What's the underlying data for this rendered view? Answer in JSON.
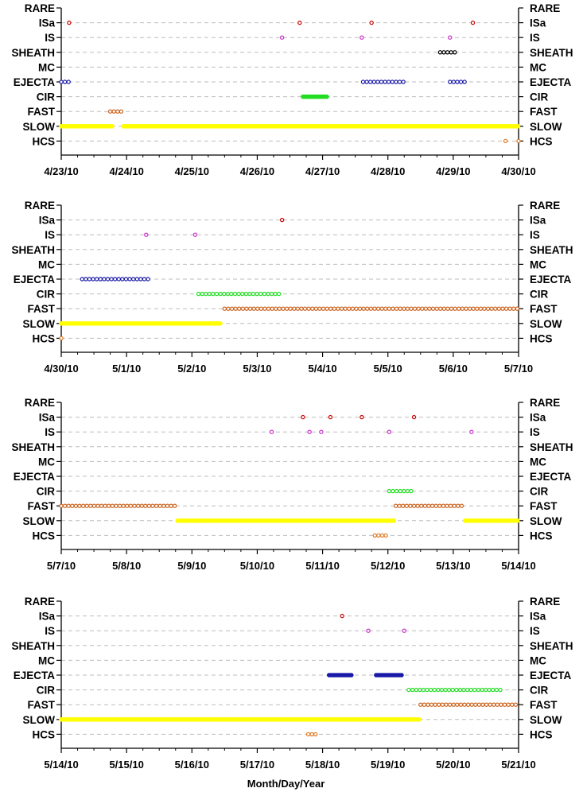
{
  "chart_data": {
    "type": "scatter",
    "xlabel": "Month/Day/Year",
    "categories": [
      "RARE",
      "ISa",
      "IS",
      "SHEATH",
      "MC",
      "EJECTA",
      "CIR",
      "FAST",
      "SLOW",
      "HCS"
    ],
    "colors": {
      "ISa": "#cc0000",
      "IS": "#cc33cc",
      "SHEATH": "#000000",
      "EJECTA": "#1a1aa8",
      "CIR": "#22dd22",
      "FAST": "#cc6622",
      "SLOW": "#ffff00",
      "HCS": "#dd7722"
    },
    "panels": [
      {
        "x_ticks": [
          "4/23/10",
          "4/24/10",
          "4/25/10",
          "4/26/10",
          "4/27/10",
          "4/28/10",
          "4/29/10",
          "4/30/10"
        ],
        "xlim": [
          0,
          7
        ],
        "points": [
          {
            "cat": "ISa",
            "x": [
              0.12,
              3.65,
              4.75,
              6.3
            ]
          },
          {
            "cat": "IS",
            "x": [
              3.38,
              4.6,
              5.95
            ]
          }
        ],
        "intervals": [
          {
            "cat": "SHEATH",
            "from": 5.8,
            "to": 6.05
          },
          {
            "cat": "EJECTA",
            "from": 0,
            "to": 0.12
          },
          {
            "cat": "EJECTA",
            "from": 4.62,
            "to": 5.25
          },
          {
            "cat": "EJECTA",
            "from": 5.95,
            "to": 6.18
          },
          {
            "cat": "CIR",
            "from": 3.7,
            "to": 4.08,
            "dense": true
          },
          {
            "cat": "FAST",
            "from": 0.75,
            "to": 0.92
          },
          {
            "cat": "SLOW",
            "from": 0,
            "to": 0.8,
            "dense": true
          },
          {
            "cat": "SLOW",
            "from": 0.95,
            "to": 7,
            "dense": true
          },
          {
            "cat": "HCS",
            "from": 6.8,
            "to": 6.8
          },
          {
            "cat": "HCS",
            "from": 7.0,
            "to": 7.0
          }
        ]
      },
      {
        "x_ticks": [
          "4/30/10",
          "5/1/10",
          "5/2/10",
          "5/3/10",
          "5/4/10",
          "5/5/10",
          "5/6/10",
          "5/7/10"
        ],
        "xlim": [
          0,
          7
        ],
        "points": [
          {
            "cat": "ISa",
            "x": [
              3.38
            ]
          },
          {
            "cat": "IS",
            "x": [
              1.3,
              2.05
            ]
          }
        ],
        "intervals": [
          {
            "cat": "EJECTA",
            "from": 0.32,
            "to": 1.38
          },
          {
            "cat": "CIR",
            "from": 2.1,
            "to": 3.35
          },
          {
            "cat": "FAST",
            "from": 2.5,
            "to": 7
          },
          {
            "cat": "SLOW",
            "from": 0,
            "to": 2.45,
            "dense": true
          },
          {
            "cat": "HCS",
            "from": 0,
            "to": 0
          }
        ]
      },
      {
        "x_ticks": [
          "5/7/10",
          "5/8/10",
          "5/9/10",
          "5/10/10",
          "5/11/10",
          "5/12/10",
          "5/13/10",
          "5/14/10"
        ],
        "xlim": [
          0,
          7
        ],
        "points": [
          {
            "cat": "ISa",
            "x": [
              3.7,
              4.12,
              4.6,
              5.4
            ]
          },
          {
            "cat": "IS",
            "x": [
              3.22,
              3.8,
              3.98,
              5.02,
              6.28
            ]
          }
        ],
        "intervals": [
          {
            "cat": "CIR",
            "from": 5.02,
            "to": 5.38
          },
          {
            "cat": "FAST",
            "from": 0,
            "to": 1.78
          },
          {
            "cat": "FAST",
            "from": 5.12,
            "to": 6.18
          },
          {
            "cat": "SLOW",
            "from": 1.78,
            "to": 5.1,
            "dense": true
          },
          {
            "cat": "SLOW",
            "from": 6.18,
            "to": 7,
            "dense": true
          },
          {
            "cat": "HCS",
            "from": 4.8,
            "to": 4.98
          }
        ]
      },
      {
        "x_ticks": [
          "5/14/10",
          "5/15/10",
          "5/16/10",
          "5/17/10",
          "5/18/10",
          "5/19/10",
          "5/20/10",
          "5/21/10"
        ],
        "xlim": [
          0,
          7
        ],
        "points": [
          {
            "cat": "ISa",
            "x": [
              4.3
            ]
          },
          {
            "cat": "IS",
            "x": [
              4.7,
              5.25
            ]
          }
        ],
        "intervals": [
          {
            "cat": "EJECTA",
            "from": 4.1,
            "to": 4.45,
            "dense": true
          },
          {
            "cat": "EJECTA",
            "from": 4.82,
            "to": 5.22,
            "dense": true
          },
          {
            "cat": "CIR",
            "from": 5.32,
            "to": 6.75
          },
          {
            "cat": "FAST",
            "from": 5.5,
            "to": 7
          },
          {
            "cat": "SLOW",
            "from": 0,
            "to": 5.5,
            "dense": true
          },
          {
            "cat": "HCS",
            "from": 3.78,
            "to": 3.92
          }
        ]
      }
    ]
  }
}
